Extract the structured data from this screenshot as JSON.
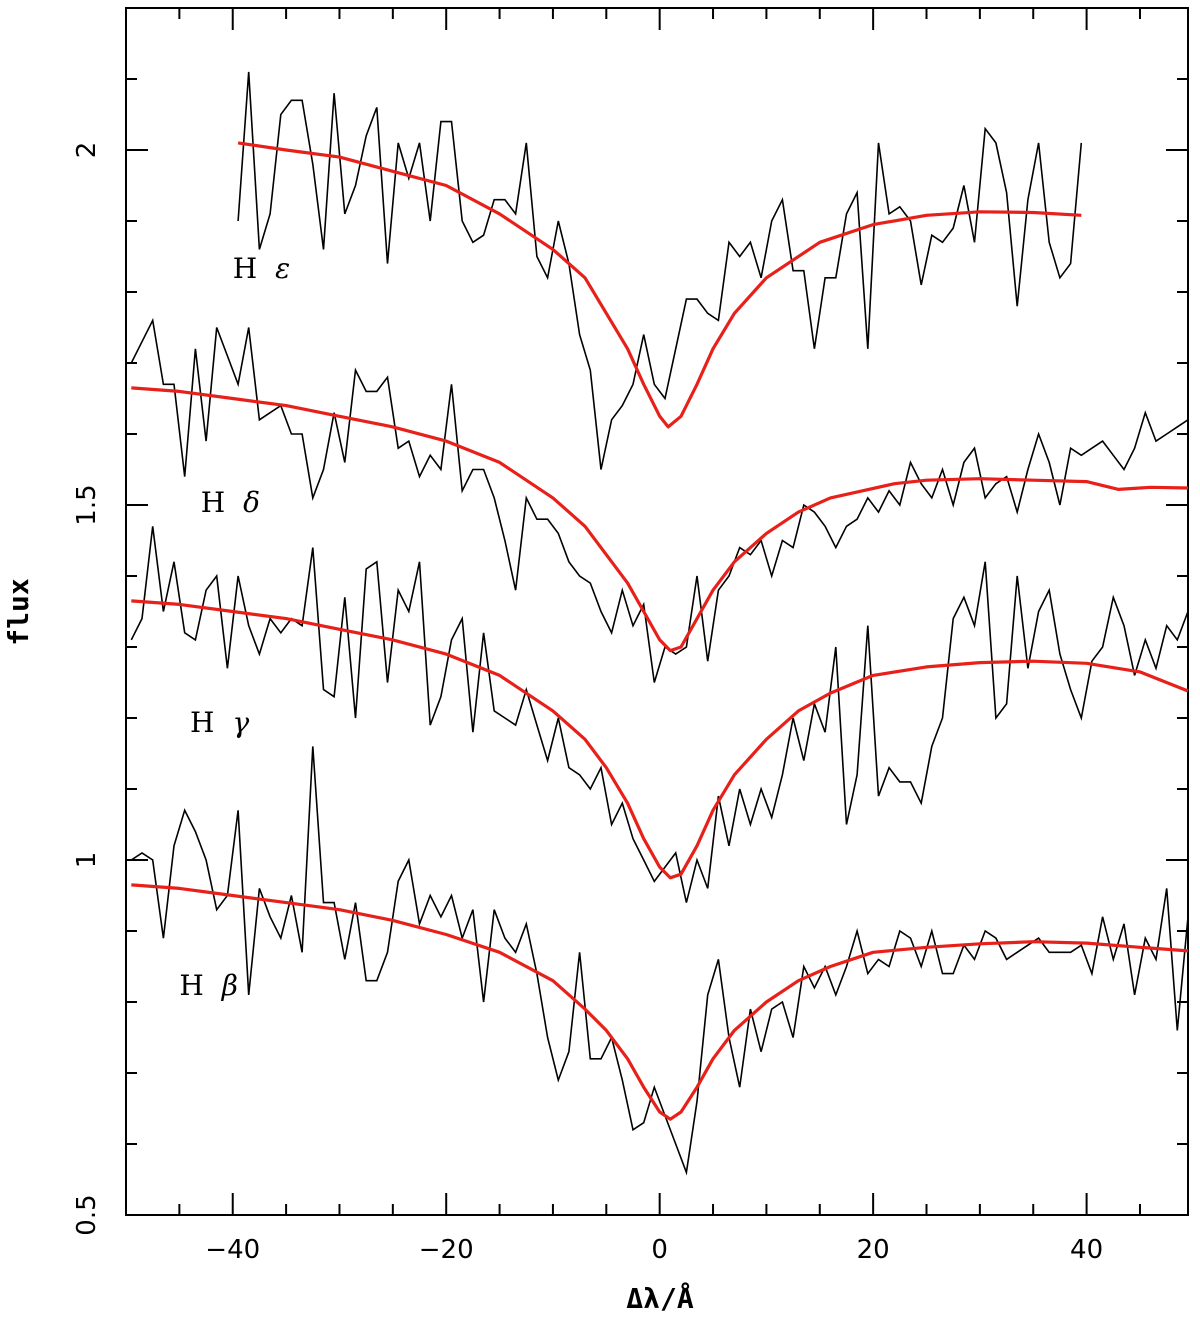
{
  "chart_data": {
    "type": "line",
    "xlabel": "Δλ/Å",
    "ylabel": "flux",
    "xlim": [
      -50,
      49.5
    ],
    "ylim": [
      0.5,
      2.2
    ],
    "x_ticks": [
      -40,
      -20,
      0,
      20,
      40
    ],
    "y_ticks": [
      0.5,
      1,
      1.5,
      2
    ],
    "x_tick_labels": [
      "−40",
      "−20",
      "0",
      "20",
      "40"
    ],
    "y_tick_labels": [
      "0.5",
      "1",
      "1.5",
      "2"
    ],
    "colors": {
      "observed": "#000000",
      "model": "#e8201a"
    },
    "series": [
      {
        "name": "H ε",
        "label_pos": [
          -40,
          1.82
        ],
        "x_start": -39.5,
        "x_end": 39.5,
        "step": 1,
        "observed": [
          1.9,
          2.11,
          1.86,
          1.91,
          2.05,
          2.07,
          2.07,
          1.98,
          1.86,
          2.08,
          1.91,
          1.95,
          2.02,
          2.06,
          1.84,
          2.01,
          1.96,
          2.01,
          1.9,
          2.04,
          2.04,
          1.9,
          1.87,
          1.88,
          1.93,
          1.93,
          1.91,
          2.01,
          1.85,
          1.82,
          1.9,
          1.84,
          1.74,
          1.69,
          1.55,
          1.62,
          1.64,
          1.67,
          1.74,
          1.67,
          1.65,
          1.72,
          1.79,
          1.79,
          1.77,
          1.76,
          1.87,
          1.85,
          1.87,
          1.82,
          1.9,
          1.93,
          1.83,
          1.83,
          1.72,
          1.82,
          1.82,
          1.91,
          1.94,
          1.72,
          2.01,
          1.91,
          1.92,
          1.9,
          1.81,
          1.88,
          1.87,
          1.89,
          1.95,
          1.87,
          2.03,
          2.01,
          1.94,
          1.78,
          1.93,
          2.01,
          1.87,
          1.82,
          1.84,
          2.01
        ],
        "model": [
          [
            -39.5,
            2.01
          ],
          [
            -35,
            2.0
          ],
          [
            -30,
            1.99
          ],
          [
            -25,
            1.97
          ],
          [
            -20,
            1.95
          ],
          [
            -15,
            1.91
          ],
          [
            -10,
            1.86
          ],
          [
            -7,
            1.82
          ],
          [
            -5,
            1.77
          ],
          [
            -3,
            1.72
          ],
          [
            -1.5,
            1.67
          ],
          [
            0,
            1.625
          ],
          [
            0.8,
            1.61
          ],
          [
            2,
            1.625
          ],
          [
            3.5,
            1.67
          ],
          [
            5,
            1.72
          ],
          [
            7,
            1.77
          ],
          [
            10,
            1.82
          ],
          [
            15,
            1.87
          ],
          [
            20,
            1.895
          ],
          [
            25,
            1.908
          ],
          [
            30,
            1.913
          ],
          [
            35,
            1.912
          ],
          [
            39.5,
            1.908
          ]
        ]
      },
      {
        "name": "H δ",
        "label_pos": [
          -43,
          1.49
        ],
        "x_start": -49.5,
        "x_end": 49.5,
        "step": 1,
        "observed": [
          1.7,
          1.73,
          1.76,
          1.67,
          1.67,
          1.54,
          1.72,
          1.59,
          1.75,
          1.71,
          1.67,
          1.75,
          1.62,
          1.63,
          1.64,
          1.6,
          1.6,
          1.51,
          1.55,
          1.63,
          1.56,
          1.69,
          1.66,
          1.66,
          1.68,
          1.58,
          1.59,
          1.54,
          1.57,
          1.55,
          1.67,
          1.52,
          1.55,
          1.55,
          1.51,
          1.45,
          1.38,
          1.51,
          1.48,
          1.48,
          1.46,
          1.42,
          1.4,
          1.39,
          1.35,
          1.32,
          1.38,
          1.33,
          1.36,
          1.25,
          1.3,
          1.29,
          1.3,
          1.4,
          1.28,
          1.38,
          1.4,
          1.44,
          1.43,
          1.45,
          1.4,
          1.45,
          1.44,
          1.5,
          1.49,
          1.47,
          1.44,
          1.47,
          1.48,
          1.51,
          1.49,
          1.52,
          1.5,
          1.56,
          1.53,
          1.51,
          1.55,
          1.5,
          1.56,
          1.58,
          1.51,
          1.53,
          1.54,
          1.49,
          1.55,
          1.6,
          1.56,
          1.5,
          1.58,
          1.57,
          1.58,
          1.59,
          1.57,
          1.55,
          1.58,
          1.63,
          1.59,
          1.6,
          1.61,
          1.62
        ],
        "model": [
          [
            -49.5,
            1.665
          ],
          [
            -45,
            1.66
          ],
          [
            -40,
            1.65
          ],
          [
            -35,
            1.64
          ],
          [
            -30,
            1.625
          ],
          [
            -25,
            1.61
          ],
          [
            -20,
            1.59
          ],
          [
            -15,
            1.56
          ],
          [
            -10,
            1.51
          ],
          [
            -7,
            1.47
          ],
          [
            -5,
            1.43
          ],
          [
            -3,
            1.39
          ],
          [
            -1.5,
            1.35
          ],
          [
            0,
            1.31
          ],
          [
            1,
            1.295
          ],
          [
            2,
            1.3
          ],
          [
            3.5,
            1.34
          ],
          [
            5,
            1.38
          ],
          [
            7,
            1.42
          ],
          [
            10,
            1.46
          ],
          [
            13,
            1.49
          ],
          [
            16,
            1.51
          ],
          [
            19,
            1.52
          ],
          [
            22,
            1.53
          ],
          [
            25,
            1.535
          ],
          [
            30,
            1.537
          ],
          [
            35,
            1.535
          ],
          [
            40,
            1.533
          ],
          [
            43,
            1.522
          ],
          [
            46,
            1.525
          ],
          [
            49.5,
            1.524
          ]
        ]
      },
      {
        "name": "H γ",
        "label_pos": [
          -44,
          1.18
        ],
        "x_start": -49.5,
        "x_end": 49.5,
        "step": 1,
        "observed": [
          1.31,
          1.34,
          1.47,
          1.35,
          1.42,
          1.32,
          1.31,
          1.38,
          1.4,
          1.27,
          1.4,
          1.33,
          1.29,
          1.34,
          1.32,
          1.34,
          1.33,
          1.44,
          1.24,
          1.23,
          1.37,
          1.2,
          1.41,
          1.42,
          1.25,
          1.38,
          1.35,
          1.42,
          1.19,
          1.23,
          1.31,
          1.34,
          1.18,
          1.32,
          1.21,
          1.2,
          1.19,
          1.24,
          1.19,
          1.14,
          1.2,
          1.13,
          1.12,
          1.1,
          1.13,
          1.05,
          1.08,
          1.03,
          1.0,
          0.97,
          0.99,
          1.01,
          0.94,
          1.0,
          0.96,
          1.09,
          1.02,
          1.1,
          1.05,
          1.1,
          1.06,
          1.12,
          1.2,
          1.14,
          1.22,
          1.18,
          1.3,
          1.05,
          1.12,
          1.33,
          1.09,
          1.13,
          1.11,
          1.11,
          1.08,
          1.16,
          1.2,
          1.34,
          1.37,
          1.33,
          1.42,
          1.2,
          1.22,
          1.4,
          1.27,
          1.35,
          1.38,
          1.29,
          1.24,
          1.2,
          1.28,
          1.3,
          1.37,
          1.33,
          1.26,
          1.31,
          1.27,
          1.33,
          1.31,
          1.35
        ],
        "model": [
          [
            -49.5,
            1.365
          ],
          [
            -45,
            1.36
          ],
          [
            -40,
            1.35
          ],
          [
            -35,
            1.34
          ],
          [
            -30,
            1.325
          ],
          [
            -25,
            1.31
          ],
          [
            -20,
            1.29
          ],
          [
            -15,
            1.26
          ],
          [
            -10,
            1.21
          ],
          [
            -7,
            1.17
          ],
          [
            -5,
            1.13
          ],
          [
            -3,
            1.08
          ],
          [
            -1.5,
            1.03
          ],
          [
            0,
            0.99
          ],
          [
            1,
            0.975
          ],
          [
            2,
            0.98
          ],
          [
            3.5,
            1.02
          ],
          [
            5,
            1.07
          ],
          [
            7,
            1.12
          ],
          [
            10,
            1.17
          ],
          [
            13,
            1.21
          ],
          [
            16,
            1.235
          ],
          [
            20,
            1.26
          ],
          [
            25,
            1.272
          ],
          [
            30,
            1.278
          ],
          [
            35,
            1.28
          ],
          [
            40,
            1.277
          ],
          [
            45,
            1.265
          ],
          [
            49.5,
            1.238
          ]
        ]
      },
      {
        "name": "H β",
        "label_pos": [
          -45,
          0.81
        ],
        "x_start": -49.5,
        "x_end": 49.5,
        "step": 1,
        "observed": [
          1.0,
          1.01,
          1.0,
          0.89,
          1.02,
          1.07,
          1.04,
          1.0,
          0.93,
          0.95,
          1.07,
          0.81,
          0.96,
          0.92,
          0.89,
          0.95,
          0.87,
          1.16,
          0.94,
          0.94,
          0.86,
          0.94,
          0.83,
          0.83,
          0.87,
          0.97,
          1.0,
          0.91,
          0.95,
          0.92,
          0.95,
          0.89,
          0.93,
          0.8,
          0.93,
          0.89,
          0.87,
          0.91,
          0.84,
          0.75,
          0.69,
          0.73,
          0.87,
          0.72,
          0.72,
          0.75,
          0.69,
          0.62,
          0.63,
          0.68,
          0.64,
          0.6,
          0.56,
          0.66,
          0.81,
          0.86,
          0.75,
          0.68,
          0.79,
          0.73,
          0.79,
          0.8,
          0.75,
          0.85,
          0.82,
          0.85,
          0.81,
          0.85,
          0.9,
          0.84,
          0.86,
          0.85,
          0.9,
          0.89,
          0.85,
          0.9,
          0.84,
          0.84,
          0.88,
          0.86,
          0.9,
          0.89,
          0.86,
          0.87,
          0.88,
          0.89,
          0.87,
          0.87,
          0.87,
          0.88,
          0.84,
          0.92,
          0.86,
          0.91,
          0.81,
          0.89,
          0.86,
          0.96,
          0.76,
          0.92
        ],
        "model": [
          [
            -49.5,
            0.965
          ],
          [
            -45,
            0.96
          ],
          [
            -40,
            0.95
          ],
          [
            -35,
            0.94
          ],
          [
            -30,
            0.93
          ],
          [
            -25,
            0.915
          ],
          [
            -20,
            0.895
          ],
          [
            -15,
            0.87
          ],
          [
            -10,
            0.83
          ],
          [
            -7,
            0.79
          ],
          [
            -5,
            0.76
          ],
          [
            -3,
            0.72
          ],
          [
            -1.5,
            0.68
          ],
          [
            0,
            0.645
          ],
          [
            1,
            0.635
          ],
          [
            2,
            0.645
          ],
          [
            3.5,
            0.68
          ],
          [
            5,
            0.72
          ],
          [
            7,
            0.76
          ],
          [
            10,
            0.8
          ],
          [
            13,
            0.83
          ],
          [
            16,
            0.85
          ],
          [
            20,
            0.87
          ],
          [
            25,
            0.877
          ],
          [
            30,
            0.882
          ],
          [
            35,
            0.885
          ],
          [
            40,
            0.883
          ],
          [
            45,
            0.877
          ],
          [
            49.5,
            0.872
          ]
        ]
      }
    ]
  }
}
